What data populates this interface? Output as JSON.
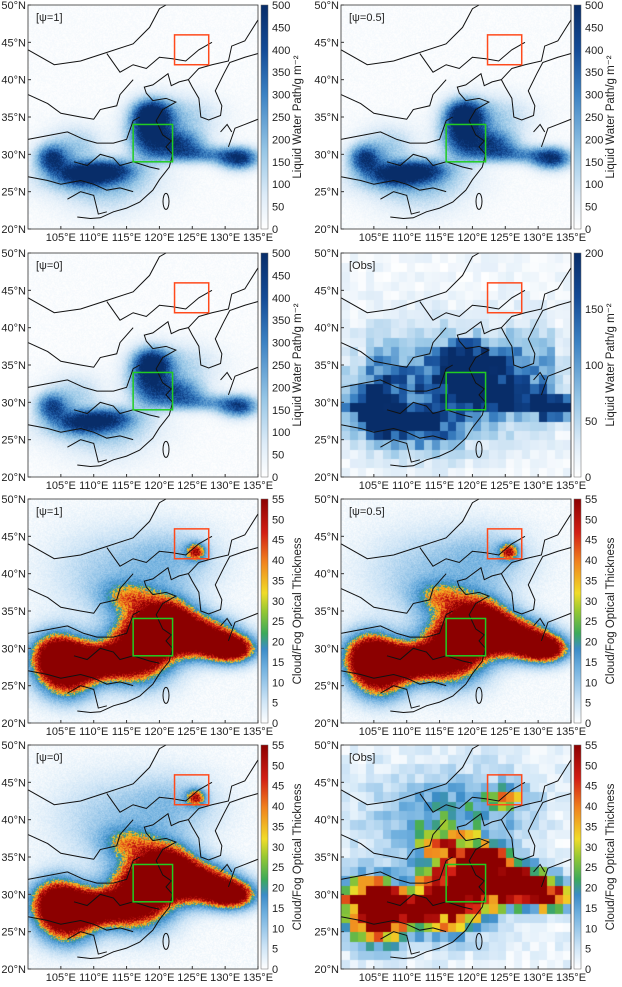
{
  "lat_ticks": [
    "20°N",
    "25°N",
    "30°N",
    "35°N",
    "40°N",
    "45°N",
    "50°N"
  ],
  "lon_ticks": [
    "105°E",
    "110°E",
    "115°E",
    "120°E",
    "125°E",
    "130°E",
    "135°E"
  ],
  "colors": {
    "red_box": "#ff4a1c",
    "green_box": "#22cc22",
    "coast": "#111111"
  },
  "panels": [
    {
      "label": "[ψ=1]",
      "var": "lwp",
      "kind": "model",
      "scale": 1.0,
      "cbar_label": "Liquid  Water  Path/g m⁻²",
      "cbar_max": 500,
      "cbar_ticks": [
        "0",
        "50",
        "100",
        "150",
        "200",
        "250",
        "300",
        "350",
        "400",
        "450",
        "500"
      ]
    },
    {
      "label": "[ψ=0.5]",
      "var": "lwp",
      "kind": "model",
      "scale": 0.97,
      "cbar_label": "Liquid  Water  Path/g m⁻²",
      "cbar_max": 500,
      "cbar_ticks": [
        "0",
        "50",
        "100",
        "150",
        "200",
        "250",
        "300",
        "350",
        "400",
        "450",
        "500"
      ]
    },
    {
      "label": "[ψ=0]",
      "var": "lwp",
      "kind": "model",
      "scale": 0.85,
      "cbar_label": "Liquid  Water  Path/g m⁻²",
      "cbar_max": 500,
      "cbar_ticks": [
        "0",
        "50",
        "100",
        "150",
        "200",
        "250",
        "300",
        "350",
        "400",
        "450",
        "500"
      ]
    },
    {
      "label": "[Obs]",
      "var": "lwp",
      "kind": "obs",
      "scale": 1.0,
      "cbar_label": "Liquid  Water  Path/g m⁻²",
      "cbar_max": 200,
      "cbar_ticks": [
        "0",
        "50",
        "100",
        "150",
        "200"
      ]
    },
    {
      "label": "[ψ=1]",
      "var": "cot",
      "kind": "model",
      "scale": 1.0,
      "cbar_label": "Cloud/Fog  Optical  Thickness",
      "cbar_max": 55,
      "cbar_ticks": [
        "0",
        "5",
        "10",
        "15",
        "20",
        "25",
        "30",
        "35",
        "40",
        "45",
        "50",
        "55"
      ]
    },
    {
      "label": "[ψ=0.5]",
      "var": "cot",
      "kind": "model",
      "scale": 1.0,
      "cbar_label": "Cloud/Fog  Optical  Thickness",
      "cbar_max": 55,
      "cbar_ticks": [
        "0",
        "5",
        "10",
        "15",
        "20",
        "25",
        "30",
        "35",
        "40",
        "45",
        "50",
        "55"
      ]
    },
    {
      "label": "[ψ=0]",
      "var": "cot",
      "kind": "model",
      "scale": 0.97,
      "cbar_label": "Cloud/Fog  Optical  Thickness",
      "cbar_max": 55,
      "cbar_ticks": [
        "0",
        "5",
        "10",
        "15",
        "20",
        "25",
        "30",
        "35",
        "40",
        "45",
        "50",
        "55"
      ]
    },
    {
      "label": "[Obs]",
      "var": "cot",
      "kind": "obs",
      "scale": 1.0,
      "cbar_label": "Cloud/Fog  Optical  Thickness",
      "cbar_max": 55,
      "cbar_ticks": [
        "0",
        "5",
        "10",
        "15",
        "20",
        "25",
        "30",
        "35",
        "40",
        "45",
        "50",
        "55"
      ]
    }
  ]
}
